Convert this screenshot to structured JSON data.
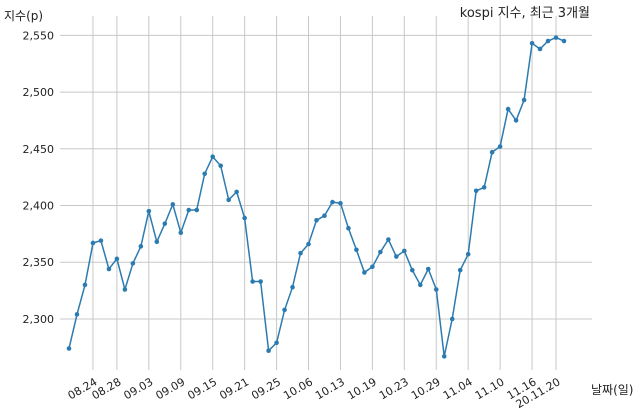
{
  "chart_data": {
    "type": "line",
    "title": "kospi 지수, 최근 3개월",
    "ylabel": "지수(p)",
    "xlabel": "날짜(일)",
    "ylim": [
      2255,
      2560
    ],
    "yticks": [
      2300,
      2350,
      2400,
      2450,
      2500,
      2550
    ],
    "ytick_labels": [
      "2,300",
      "2,350",
      "2,400",
      "2,450",
      "2,500",
      "2,550"
    ],
    "xtick_labels": [
      "08.24",
      "08.28",
      "09.03",
      "09.09",
      "09.15",
      "09.21",
      "09.25",
      "10.06",
      "10.13",
      "10.19",
      "10.23",
      "10.29",
      "11.04",
      "11.10",
      "11.16",
      "20.11.20"
    ],
    "xtick_index": [
      3,
      6,
      10,
      14,
      18,
      22,
      26,
      30,
      34,
      38,
      42,
      46,
      50,
      54,
      58,
      61
    ],
    "grid": true,
    "series": [
      {
        "values": [
          2274,
          2304,
          2330,
          2367,
          2369,
          2344,
          2353,
          2326,
          2349,
          2364,
          2395,
          2368,
          2384,
          2401,
          2376,
          2396,
          2396,
          2428,
          2443,
          2435,
          2405,
          2412,
          2389,
          2333,
          2333,
          2272,
          2279,
          2308,
          2328,
          2358,
          2366,
          2387,
          2391,
          2403,
          2402,
          2380,
          2361,
          2341,
          2346,
          2359,
          2370,
          2355,
          2360,
          2343,
          2330,
          2344,
          2326,
          2267,
          2300,
          2343,
          2357,
          2413,
          2416,
          2447,
          2452,
          2485,
          2475,
          2493,
          2543,
          2538,
          2545,
          2548,
          2545
        ]
      }
    ]
  }
}
